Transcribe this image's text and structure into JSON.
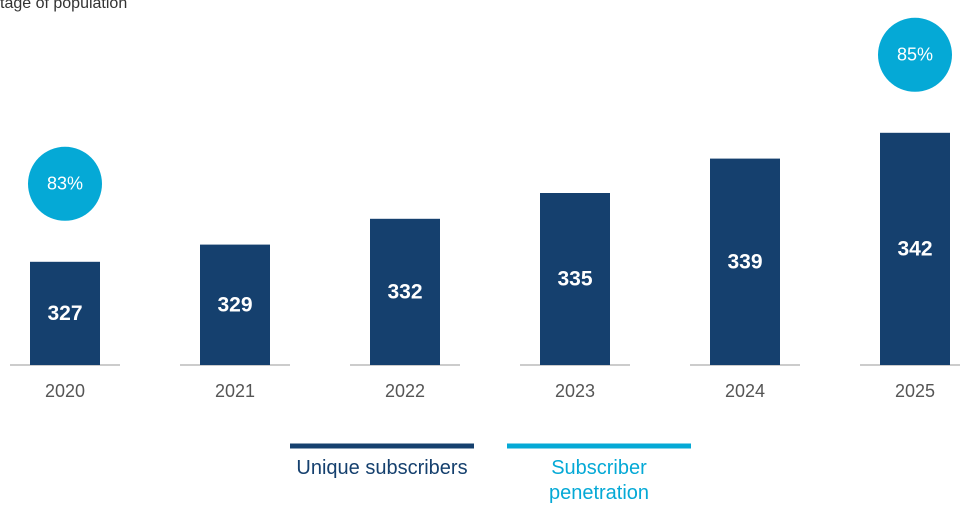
{
  "chart_data": {
    "type": "bar",
    "subtitle": "tage of population",
    "categories": [
      "2020",
      "2021",
      "2022",
      "2023",
      "2024",
      "2025"
    ],
    "series": [
      {
        "name": "Unique subscribers",
        "color": "#15406e",
        "values": [
          327,
          329,
          332,
          335,
          339,
          342
        ]
      },
      {
        "name": "Subscriber penetration",
        "color": "#05a9d6",
        "values": [
          83,
          null,
          null,
          null,
          null,
          85
        ],
        "value_labels": [
          "83%",
          null,
          null,
          null,
          null,
          "85%"
        ]
      }
    ],
    "ylim": [
      315,
      345
    ]
  }
}
